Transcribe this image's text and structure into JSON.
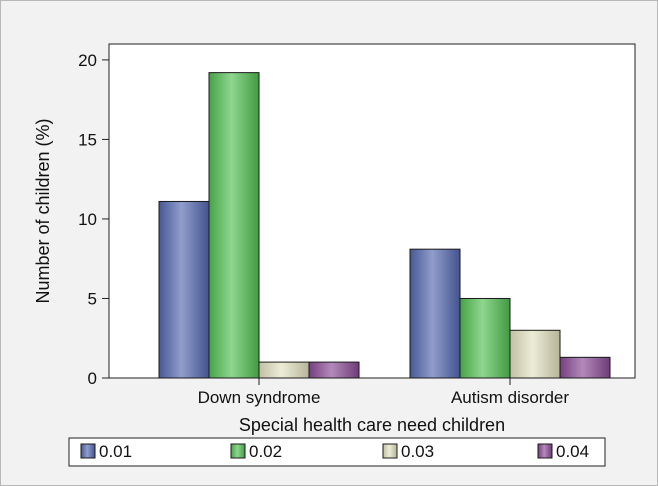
{
  "chart_data": {
    "type": "bar",
    "xlabel": "Special health care need children",
    "ylabel": "Number of children (%)",
    "categories": [
      "Down syndrome",
      "Autism disorder"
    ],
    "ylim": [
      0,
      21
    ],
    "yticks": [
      0,
      5,
      10,
      15,
      20
    ],
    "grid": false,
    "legend_position": "bottom",
    "series": [
      {
        "name": "0.01",
        "values": [
          11.1,
          8.1
        ],
        "color": "#5468b0"
      },
      {
        "name": "0.02",
        "values": [
          19.2,
          5.0
        ],
        "color": "#52c052"
      },
      {
        "name": "0.03",
        "values": [
          1.0,
          3.0
        ],
        "color": "#e3e2c0"
      },
      {
        "name": "0.04",
        "values": [
          1.0,
          1.3
        ],
        "color": "#8a4a96"
      }
    ]
  }
}
